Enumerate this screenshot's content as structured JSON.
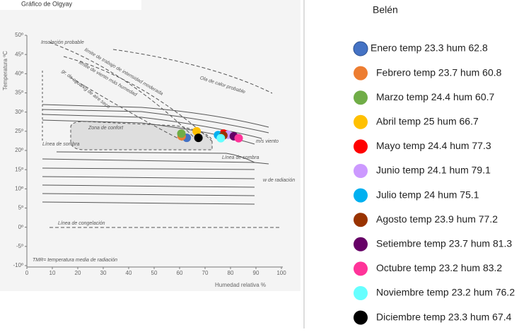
{
  "chart_data": {
    "type": "scatter",
    "title": "Gráfico de Olgyay",
    "legend_title": "Belén",
    "xlabel": "Humedad relativa %",
    "ylabel": "Temperatura ºC",
    "xlim": [
      0,
      100
    ],
    "ylim": [
      -10,
      50
    ],
    "xticks": [
      0,
      10,
      20,
      30,
      40,
      50,
      60,
      70,
      80,
      90,
      100
    ],
    "yticks": [
      {
        "value": 50,
        "label": "50º"
      },
      {
        "value": 45,
        "label": "45º"
      },
      {
        "value": 40,
        "label": "40º"
      },
      {
        "value": 35,
        "label": "35º"
      },
      {
        "value": 30,
        "label": "30º"
      },
      {
        "value": 25,
        "label": "25º"
      },
      {
        "value": 20,
        "label": "20º"
      },
      {
        "value": 15,
        "label": "15º"
      },
      {
        "value": 10,
        "label": "10º"
      },
      {
        "value": 5,
        "label": "5º"
      },
      {
        "value": 0,
        "label": "0º"
      },
      {
        "value": -5,
        "label": "-5º"
      },
      {
        "value": -10,
        "label": "-10º"
      }
    ],
    "annotations": [
      "Insolación probable",
      "Ola de calor probable",
      "Zona de confort",
      "Línea de sombra",
      "Línea de sombra",
      "Línea de congelación",
      "TMR= temperatura media de radiación",
      "límite de trabajo de intensidad moderada",
      "límite de viento más humedad",
      "gr. de agua/kg de aire seco",
      "m/s viento",
      "w de radiación"
    ],
    "series": [
      {
        "name": "Enero temp 23.3 hum 62.8",
        "color": "#4472c4",
        "x": [
          62.8
        ],
        "values": [
          23.3
        ]
      },
      {
        "name": "Febrero temp 23.7 hum 60.8",
        "color": "#ed7d31",
        "x": [
          60.8
        ],
        "values": [
          23.7
        ]
      },
      {
        "name": "Marzo temp 24.4 hum 60.7",
        "color": "#70ad47",
        "x": [
          60.7
        ],
        "values": [
          24.4
        ]
      },
      {
        "name": "Abril temp 25 hum 66.7",
        "color": "#ffc000",
        "x": [
          66.7
        ],
        "values": [
          25
        ]
      },
      {
        "name": "Mayo temp 24.4 hum 77.3",
        "color": "#ff0000",
        "x": [
          77.3
        ],
        "values": [
          24.4
        ]
      },
      {
        "name": "Junio temp 24.1 hum 79.1",
        "color": "#cc99ff",
        "x": [
          79.1
        ],
        "values": [
          24.1
        ]
      },
      {
        "name": "Julio temp 24 hum 75.1",
        "color": "#00b0f0",
        "x": [
          75.1
        ],
        "values": [
          24
        ]
      },
      {
        "name": "Agosto temp 23.9 hum 77.2",
        "color": "#993300",
        "x": [
          77.2
        ],
        "values": [
          23.9
        ]
      },
      {
        "name": "Setiembre temp 23.7 hum 81.3",
        "color": "#660066",
        "x": [
          81.3
        ],
        "values": [
          23.7
        ]
      },
      {
        "name": "Octubre temp 23.2 hum 83.2",
        "color": "#ff3399",
        "x": [
          83.2
        ],
        "values": [
          23.2
        ]
      },
      {
        "name": "Noviembre temp 23.2 hum 76.2",
        "color": "#66ffff",
        "x": [
          76.2
        ],
        "values": [
          23.2
        ]
      },
      {
        "name": "Diciembre temp 23.3 hum 67.4",
        "color": "#000000",
        "x": [
          67.4
        ],
        "values": [
          23.3
        ]
      }
    ]
  }
}
